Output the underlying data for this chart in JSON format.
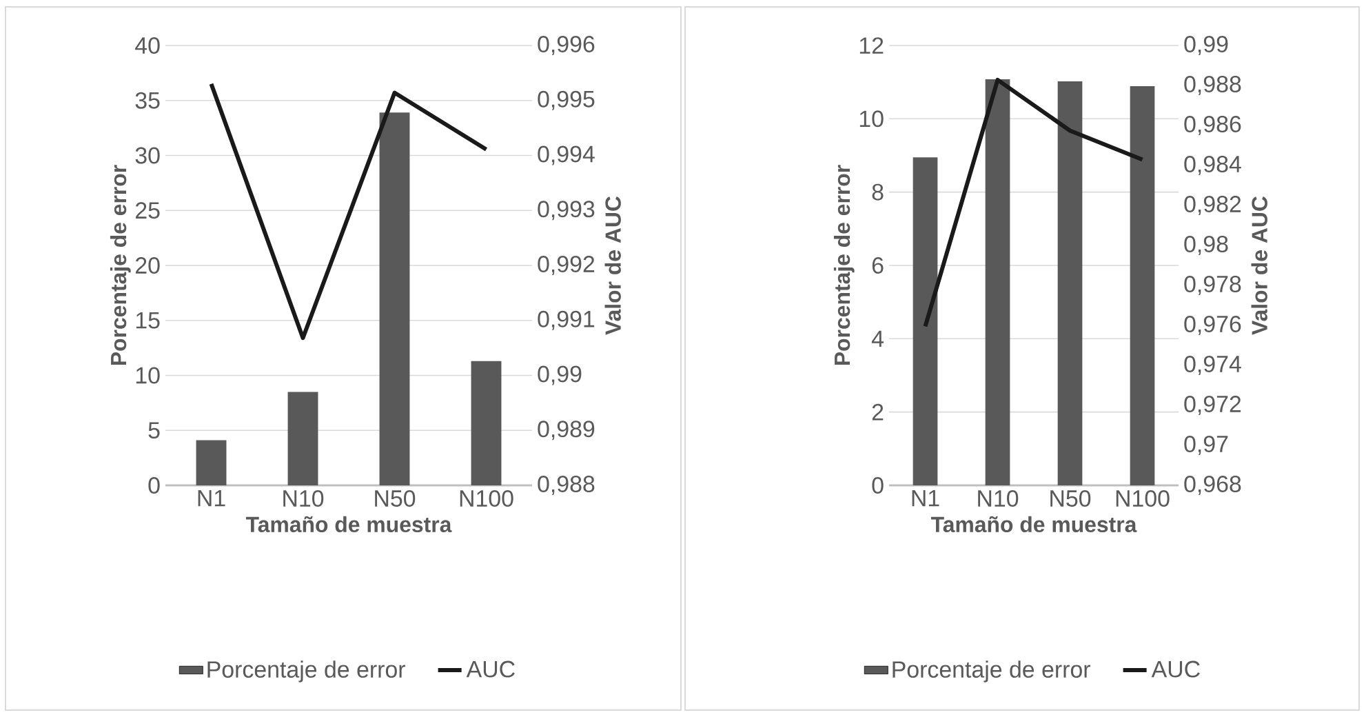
{
  "chart_data": [
    {
      "type": "bar",
      "categories": [
        "N1",
        "N10",
        "N50",
        "N100"
      ],
      "xlabel": "Tamaño de muestra",
      "ylabel": "Porcentaje de error",
      "y2label": "Valor de AUC",
      "grid": "y",
      "legend": "bottom",
      "series": [
        {
          "name": "Porcentaje de error",
          "color": "#595959",
          "values": [
            4.1,
            8.5,
            33.9,
            11.3
          ]
        },
        {
          "name": "AUC",
          "type": "line",
          "axis": "y2",
          "color": "#1a1a1a",
          "values": [
            0.9953,
            0.99068,
            0.99514,
            0.99411
          ]
        }
      ],
      "ylim": [
        0,
        40
      ],
      "yticks": [
        0,
        5,
        10,
        15,
        20,
        25,
        30,
        35,
        40
      ],
      "y2lim": [
        0.988,
        0.996
      ],
      "y2ticks": [
        {
          "value": 0.988,
          "label": "0,988"
        },
        {
          "value": 0.989,
          "label": "0,989"
        },
        {
          "value": 0.99,
          "label": "0,99"
        },
        {
          "value": 0.991,
          "label": "0,991"
        },
        {
          "value": 0.992,
          "label": "0,992"
        },
        {
          "value": 0.993,
          "label": "0,993"
        },
        {
          "value": 0.994,
          "label": "0,994"
        },
        {
          "value": 0.995,
          "label": "0,995"
        },
        {
          "value": 0.996,
          "label": "0,996"
        }
      ]
    },
    {
      "type": "bar",
      "categories": [
        "N1",
        "N10",
        "N50",
        "N100"
      ],
      "xlabel": "Tamaño de muestra",
      "ylabel": "Porcentaje de error",
      "y2label": "Valor de AUC",
      "grid": "y",
      "legend": "bottom",
      "series": [
        {
          "name": "Porcentaje de error",
          "color": "#595959",
          "values": [
            8.95,
            11.08,
            11.02,
            10.89
          ]
        },
        {
          "name": "AUC",
          "type": "line",
          "axis": "y2",
          "color": "#1a1a1a",
          "values": [
            0.97595,
            0.98828,
            0.98574,
            0.98429
          ]
        }
      ],
      "ylim": [
        0,
        12
      ],
      "yticks": [
        0,
        2,
        4,
        6,
        8,
        10,
        12
      ],
      "y2lim": [
        0.968,
        0.99
      ],
      "y2ticks": [
        {
          "value": 0.968,
          "label": "0,968"
        },
        {
          "value": 0.97,
          "label": "0,97"
        },
        {
          "value": 0.972,
          "label": "0,972"
        },
        {
          "value": 0.974,
          "label": "0,974"
        },
        {
          "value": 0.976,
          "label": "0,976"
        },
        {
          "value": 0.978,
          "label": "0,978"
        },
        {
          "value": 0.98,
          "label": "0,98"
        },
        {
          "value": 0.982,
          "label": "0,982"
        },
        {
          "value": 0.984,
          "label": "0,984"
        },
        {
          "value": 0.986,
          "label": "0,986"
        },
        {
          "value": 0.988,
          "label": "0,988"
        },
        {
          "value": 0.99,
          "label": "0,99"
        }
      ]
    }
  ]
}
